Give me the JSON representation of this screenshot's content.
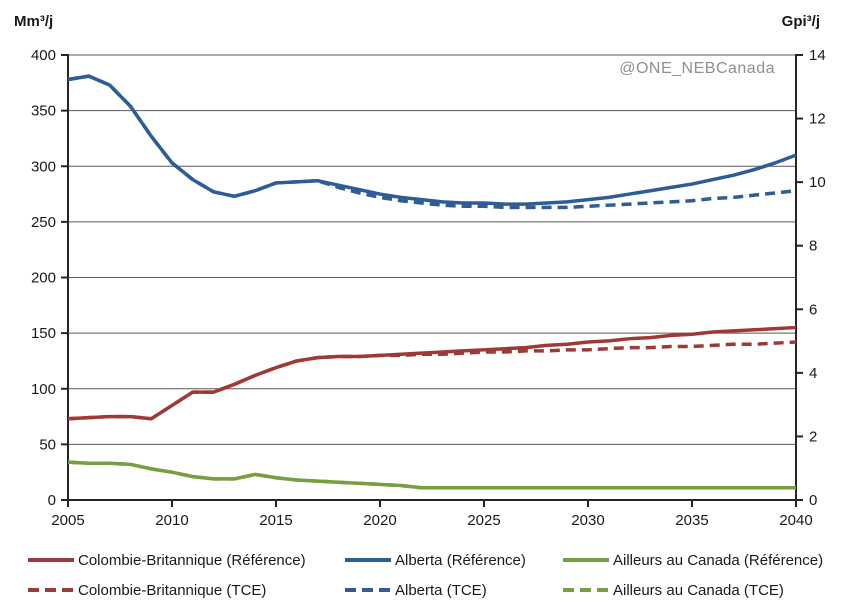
{
  "watermark": {
    "text": "@ONE_NEBCanada",
    "color": "#8f8f8f"
  },
  "chart_data": {
    "type": "line",
    "title": "",
    "grid": true,
    "xlim": [
      2005,
      2040
    ],
    "ylim_left": [
      0,
      400
    ],
    "ylim_right": [
      0,
      14
    ],
    "y_left": {
      "label": "Mm³/j",
      "ticks": [
        0,
        50,
        100,
        150,
        200,
        250,
        300,
        350,
        400
      ]
    },
    "y_right": {
      "label": "Gpi³/j",
      "ticks": [
        0,
        2,
        4,
        6,
        8,
        10,
        12,
        14
      ]
    },
    "x_axis": {
      "ticks": [
        2005,
        2010,
        2015,
        2020,
        2025,
        2030,
        2035,
        2040
      ]
    },
    "x": [
      2005,
      2006,
      2007,
      2008,
      2009,
      2010,
      2011,
      2012,
      2013,
      2014,
      2015,
      2016,
      2017,
      2018,
      2019,
      2020,
      2021,
      2022,
      2023,
      2024,
      2025,
      2026,
      2027,
      2028,
      2029,
      2030,
      2031,
      2032,
      2033,
      2034,
      2035,
      2036,
      2037,
      2038,
      2039,
      2040
    ],
    "colors": {
      "colombie_britannique": "#9e3a35",
      "alberta": "#2e5c97",
      "ailleurs_au_canada": "#76a03e"
    },
    "legend_position": "bottom",
    "series": [
      {
        "id": "cb_ref",
        "name": "Colombie-Britannique (Référence)",
        "color": "#9e3a35",
        "dash": "none",
        "swatch_style": "stroke:#9e3a35",
        "values": [
          73,
          74,
          75,
          75,
          73,
          85,
          97,
          97,
          104,
          112,
          119,
          125,
          128,
          129,
          129,
          130,
          131,
          132,
          133,
          134,
          135,
          136,
          137,
          139,
          140,
          142,
          143,
          145,
          146,
          148,
          149,
          151,
          152,
          153,
          154,
          155
        ]
      },
      {
        "id": "ab_ref",
        "name": "Alberta (Référence)",
        "color": "#2e5c97",
        "dash": "none",
        "swatch_style": "stroke:#2e5c97",
        "values": [
          378,
          381,
          373,
          354,
          327,
          303,
          288,
          277,
          273,
          278,
          285,
          286,
          287,
          283,
          279,
          275,
          272,
          270,
          268,
          267,
          267,
          266,
          266,
          267,
          268,
          270,
          272,
          275,
          278,
          281,
          284,
          288,
          292,
          297,
          303,
          310
        ]
      },
      {
        "id": "ac_ref",
        "name": "Ailleurs au Canada (Référence)",
        "color": "#76a03e",
        "dash": "none",
        "swatch_style": "stroke:#76a03e",
        "values": [
          34,
          33,
          33,
          32,
          28,
          25,
          21,
          19,
          19,
          23,
          20,
          18,
          17,
          16,
          15,
          14,
          13,
          11,
          11,
          11,
          11,
          11,
          11,
          11,
          11,
          11,
          11,
          11,
          11,
          11,
          11,
          11,
          11,
          11,
          11,
          11
        ]
      },
      {
        "id": "cb_tce",
        "name": "Colombie-Britannique (TCE)",
        "color": "#9e3a35",
        "dash": "10 6",
        "swatch_style": "stroke:#9e3a35;stroke-dasharray:11 6",
        "values": [
          73,
          74,
          75,
          75,
          73,
          85,
          97,
          97,
          104,
          112,
          119,
          125,
          128,
          129,
          129,
          130,
          130,
          131,
          131,
          132,
          133,
          133,
          134,
          134,
          135,
          135,
          136,
          137,
          137,
          138,
          138,
          139,
          140,
          140,
          141,
          142
        ]
      },
      {
        "id": "ab_tce",
        "name": "Alberta (TCE)",
        "color": "#2e5c97",
        "dash": "10 6",
        "swatch_style": "stroke:#2e5c97;stroke-dasharray:11 6",
        "values": [
          378,
          381,
          373,
          354,
          327,
          303,
          288,
          277,
          273,
          278,
          285,
          286,
          287,
          281,
          276,
          272,
          269,
          267,
          265,
          264,
          264,
          263,
          263,
          263,
          263,
          264,
          265,
          266,
          267,
          268,
          269,
          271,
          272,
          274,
          276,
          278
        ]
      },
      {
        "id": "ac_tce",
        "name": "Ailleurs au Canada (TCE)",
        "color": "#76a03e",
        "dash": "10 6",
        "swatch_style": "stroke:#76a03e;stroke-dasharray:11 6",
        "values": [
          34,
          33,
          33,
          32,
          28,
          25,
          21,
          19,
          19,
          23,
          20,
          18,
          17,
          16,
          15,
          14,
          13,
          11,
          11,
          11,
          11,
          11,
          11,
          11,
          11,
          11,
          11,
          11,
          11,
          11,
          11,
          11,
          11,
          11,
          11,
          11
        ]
      }
    ],
    "style": {
      "grid_color": "#595959",
      "axis_color": "#262626",
      "line_width": 3.5
    }
  }
}
